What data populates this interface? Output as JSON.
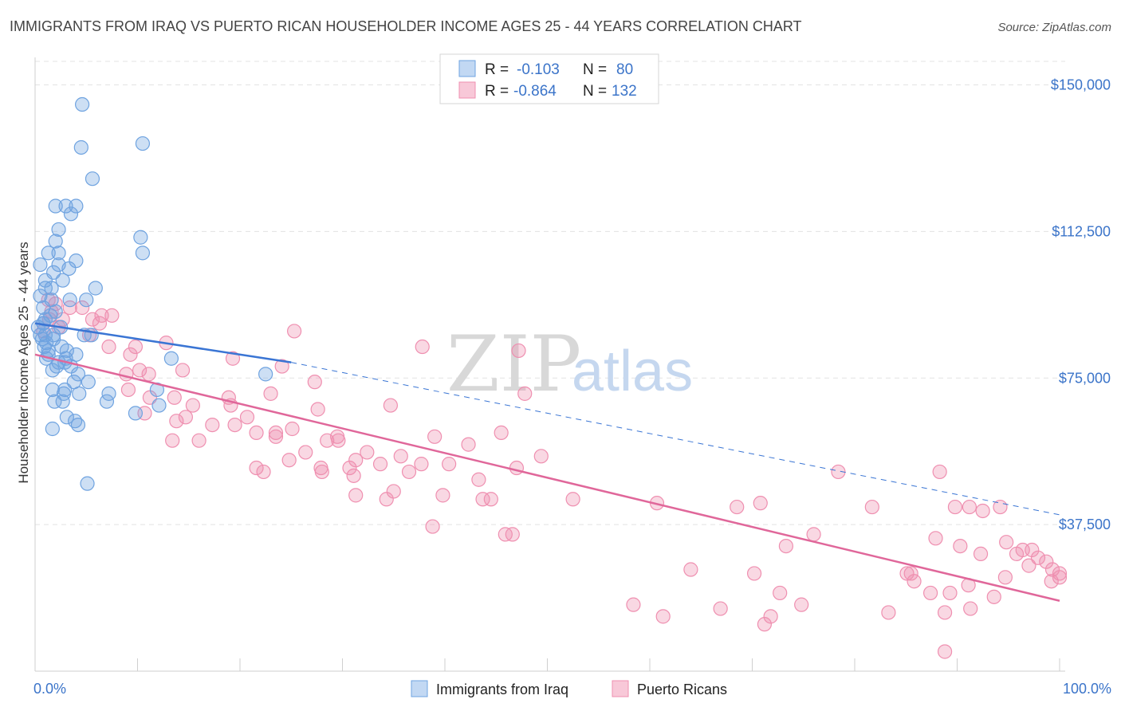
{
  "title": "IMMIGRANTS FROM IRAQ VS PUERTO RICAN HOUSEHOLDER INCOME AGES 25 - 44 YEARS CORRELATION CHART",
  "source": "Source: ZipAtlas.com",
  "watermark": {
    "zip": "ZIP",
    "atlas": "atlas"
  },
  "colors": {
    "blue": "#6fa3e0",
    "blue_line": "#3a75d4",
    "pink": "#ef8fb0",
    "pink_line": "#e0679a",
    "grid": "#e3e3e3"
  },
  "legend": {
    "rows": [
      {
        "r_label": "R =",
        "r_value": "-0.103",
        "n_label": "N =",
        "n_value": "80"
      },
      {
        "r_label": "R =",
        "r_value": "-0.864",
        "n_label": "N =",
        "n_value": "132"
      }
    ]
  },
  "bottom_legend": [
    "Immigrants from Iraq",
    "Puerto Ricans"
  ],
  "chart_data": {
    "type": "scatter",
    "xlabel": "",
    "ylabel": "Householder Income Ages 25 - 44 years",
    "xlim": [
      0,
      100
    ],
    "ylim": [
      0,
      155000
    ],
    "x_tick_labels": [
      "0.0%",
      "100.0%"
    ],
    "y_ticks": [
      37500,
      75000,
      112500,
      150000
    ],
    "y_tick_labels": [
      "$37,500",
      "$75,000",
      "$112,500",
      "$150,000"
    ],
    "grid": true,
    "series": [
      {
        "name": "Immigrants from Iraq",
        "points": [
          [
            4.6,
            145000
          ],
          [
            10.5,
            135000
          ],
          [
            4.5,
            134000
          ],
          [
            5.6,
            126000
          ],
          [
            2.0,
            119000
          ],
          [
            3.0,
            119000
          ],
          [
            4.0,
            119000
          ],
          [
            3.5,
            117000
          ],
          [
            10.3,
            111000
          ],
          [
            2.3,
            113000
          ],
          [
            2.0,
            110000
          ],
          [
            10.5,
            107000
          ],
          [
            1.3,
            107000
          ],
          [
            2.3,
            107000
          ],
          [
            4.0,
            105000
          ],
          [
            0.5,
            104000
          ],
          [
            2.3,
            104000
          ],
          [
            3.3,
            103000
          ],
          [
            1.8,
            102000
          ],
          [
            1.0,
            100000
          ],
          [
            2.7,
            100000
          ],
          [
            1.0,
            98000
          ],
          [
            1.6,
            98000
          ],
          [
            5.9,
            98000
          ],
          [
            0.5,
            96000
          ],
          [
            1.6,
            95000
          ],
          [
            3.4,
            95000
          ],
          [
            5.0,
            95000
          ],
          [
            0.8,
            93000
          ],
          [
            2.0,
            92000
          ],
          [
            1.5,
            91000
          ],
          [
            1.0,
            90000
          ],
          [
            0.8,
            89000
          ],
          [
            0.8,
            89000
          ],
          [
            0.3,
            88000
          ],
          [
            2.5,
            88000
          ],
          [
            0.5,
            86000
          ],
          [
            1.8,
            86000
          ],
          [
            1.0,
            86000
          ],
          [
            0.7,
            85000
          ],
          [
            5.5,
            86000
          ],
          [
            4.8,
            86000
          ],
          [
            1.8,
            85000
          ],
          [
            1.1,
            84000
          ],
          [
            0.9,
            83000
          ],
          [
            2.6,
            83000
          ],
          [
            1.3,
            82000
          ],
          [
            3.1,
            82000
          ],
          [
            4.0,
            81000
          ],
          [
            1.3,
            81000
          ],
          [
            3.0,
            80000
          ],
          [
            1.1,
            80000
          ],
          [
            13.3,
            80000
          ],
          [
            2.9,
            79000
          ],
          [
            2.3,
            79000
          ],
          [
            3.5,
            78000
          ],
          [
            2.1,
            78000
          ],
          [
            1.7,
            77000
          ],
          [
            22.5,
            76000
          ],
          [
            4.2,
            76000
          ],
          [
            5.2,
            74000
          ],
          [
            3.8,
            74000
          ],
          [
            2.9,
            72000
          ],
          [
            1.7,
            72000
          ],
          [
            11.9,
            72000
          ],
          [
            7.2,
            71000
          ],
          [
            2.8,
            71000
          ],
          [
            4.3,
            71000
          ],
          [
            1.9,
            69000
          ],
          [
            2.7,
            69000
          ],
          [
            7.0,
            69000
          ],
          [
            12.1,
            68000
          ],
          [
            9.8,
            66000
          ],
          [
            3.1,
            65000
          ],
          [
            3.9,
            64000
          ],
          [
            4.2,
            63000
          ],
          [
            1.7,
            62000
          ],
          [
            5.1,
            48000
          ]
        ]
      },
      {
        "name": "Puerto Ricans",
        "points": [
          [
            1.3,
            95000
          ],
          [
            2.0,
            94000
          ],
          [
            3.4,
            93000
          ],
          [
            4.6,
            93000
          ],
          [
            1.6,
            92000
          ],
          [
            6.5,
            91000
          ],
          [
            7.5,
            91000
          ],
          [
            1.4,
            90000
          ],
          [
            2.7,
            90000
          ],
          [
            5.6,
            90000
          ],
          [
            6.3,
            89000
          ],
          [
            2.3,
            88000
          ],
          [
            0.8,
            87000
          ],
          [
            25.3,
            87000
          ],
          [
            5.3,
            86000
          ],
          [
            12.8,
            84000
          ],
          [
            9.8,
            83000
          ],
          [
            7.2,
            83000
          ],
          [
            37.8,
            83000
          ],
          [
            47.2,
            82000
          ],
          [
            9.3,
            81000
          ],
          [
            19.3,
            80000
          ],
          [
            24.1,
            78000
          ],
          [
            14.4,
            77000
          ],
          [
            10.2,
            77000
          ],
          [
            8.9,
            76000
          ],
          [
            11.1,
            76000
          ],
          [
            27.3,
            74000
          ],
          [
            9.1,
            72000
          ],
          [
            11.2,
            70000
          ],
          [
            18.9,
            70000
          ],
          [
            23.0,
            71000
          ],
          [
            47.8,
            71000
          ],
          [
            13.6,
            70000
          ],
          [
            15.4,
            68000
          ],
          [
            19.1,
            68000
          ],
          [
            27.6,
            67000
          ],
          [
            34.7,
            68000
          ],
          [
            10.7,
            66000
          ],
          [
            13.8,
            64000
          ],
          [
            17.3,
            63000
          ],
          [
            19.5,
            63000
          ],
          [
            20.7,
            65000
          ],
          [
            14.7,
            65000
          ],
          [
            25.1,
            62000
          ],
          [
            23.5,
            61000
          ],
          [
            21.6,
            61000
          ],
          [
            39.0,
            60000
          ],
          [
            23.5,
            60000
          ],
          [
            29.5,
            60000
          ],
          [
            45.5,
            61000
          ],
          [
            13.4,
            59000
          ],
          [
            16.0,
            59000
          ],
          [
            28.5,
            59000
          ],
          [
            29.6,
            59000
          ],
          [
            42.3,
            58000
          ],
          [
            32.4,
            56000
          ],
          [
            26.4,
            56000
          ],
          [
            35.7,
            55000
          ],
          [
            49.4,
            55000
          ],
          [
            24.8,
            54000
          ],
          [
            31.3,
            54000
          ],
          [
            37.7,
            53000
          ],
          [
            40.4,
            53000
          ],
          [
            27.9,
            52000
          ],
          [
            30.7,
            52000
          ],
          [
            33.7,
            53000
          ],
          [
            21.6,
            52000
          ],
          [
            28.0,
            51000
          ],
          [
            22.3,
            51000
          ],
          [
            36.5,
            51000
          ],
          [
            31.1,
            50000
          ],
          [
            43.3,
            49000
          ],
          [
            47.0,
            52000
          ],
          [
            78.4,
            51000
          ],
          [
            88.3,
            51000
          ],
          [
            35.0,
            46000
          ],
          [
            34.3,
            44000
          ],
          [
            39.8,
            45000
          ],
          [
            60.7,
            43000
          ],
          [
            68.5,
            42000
          ],
          [
            70.8,
            43000
          ],
          [
            81.7,
            42000
          ],
          [
            89.8,
            42000
          ],
          [
            91.2,
            42000
          ],
          [
            92.5,
            41000
          ],
          [
            94.2,
            42000
          ],
          [
            31.3,
            45000
          ],
          [
            43.7,
            44000
          ],
          [
            44.5,
            44000
          ],
          [
            38.8,
            37000
          ],
          [
            52.5,
            44000
          ],
          [
            45.9,
            35000
          ],
          [
            46.6,
            35000
          ],
          [
            76.0,
            35000
          ],
          [
            87.9,
            34000
          ],
          [
            73.3,
            32000
          ],
          [
            94.8,
            33000
          ],
          [
            90.3,
            32000
          ],
          [
            96.4,
            31000
          ],
          [
            97.3,
            31000
          ],
          [
            92.3,
            30000
          ],
          [
            95.8,
            30000
          ],
          [
            97.9,
            29000
          ],
          [
            98.7,
            28000
          ],
          [
            97.0,
            27000
          ],
          [
            99.3,
            26000
          ],
          [
            100.0,
            25000
          ],
          [
            100.0,
            24000
          ],
          [
            64.0,
            26000
          ],
          [
            70.2,
            25000
          ],
          [
            85.1,
            25000
          ],
          [
            85.5,
            25000
          ],
          [
            94.7,
            24000
          ],
          [
            91.1,
            22000
          ],
          [
            99.2,
            23000
          ],
          [
            85.8,
            23000
          ],
          [
            72.7,
            20000
          ],
          [
            89.3,
            20000
          ],
          [
            87.4,
            20000
          ],
          [
            93.6,
            19000
          ],
          [
            74.8,
            17000
          ],
          [
            91.3,
            16000
          ],
          [
            66.9,
            16000
          ],
          [
            71.8,
            14000
          ],
          [
            88.8,
            15000
          ],
          [
            83.3,
            15000
          ],
          [
            61.3,
            14000
          ],
          [
            71.2,
            12000
          ],
          [
            58.4,
            17000
          ],
          [
            88.8,
            5000
          ]
        ]
      }
    ],
    "trend_lines": [
      {
        "series": "Immigrants from Iraq",
        "solid": [
          [
            0,
            89000
          ],
          [
            25,
            79000
          ]
        ],
        "dashed": [
          [
            25,
            79000
          ],
          [
            100,
            40000
          ]
        ]
      },
      {
        "series": "Puerto Ricans",
        "solid": [
          [
            0,
            81000
          ],
          [
            100,
            18000
          ]
        ]
      }
    ]
  }
}
